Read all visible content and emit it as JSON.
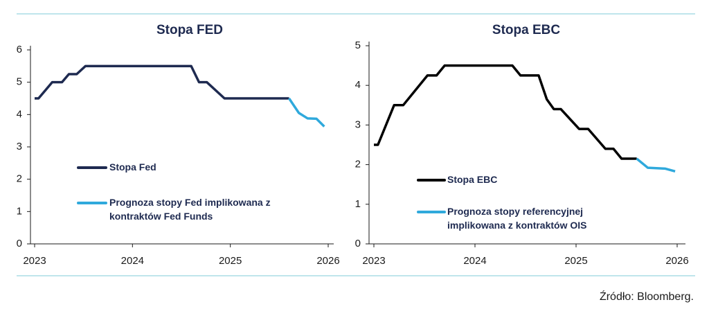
{
  "chart_data": [
    {
      "type": "line",
      "title": "Stopa FED",
      "x": [
        2023.0,
        2023.04,
        2023.18,
        2023.28,
        2023.35,
        2023.43,
        2023.52,
        2024.6,
        2024.68,
        2024.76,
        2024.94,
        2025.6,
        2025.7,
        2025.79,
        2025.88,
        2025.96
      ],
      "series": [
        {
          "name": "Stopa Fed",
          "color": "#1e2a50",
          "values": [
            4.5,
            4.5,
            5,
            5,
            5.25,
            5.25,
            5.5,
            5.5,
            5,
            5,
            4.5,
            4.5,
            null,
            null,
            null,
            null
          ]
        },
        {
          "name": "Prognoza stopy Fed implikowana z kontraktów Fed Funds",
          "color": "#2fa9dc",
          "values": [
            null,
            null,
            null,
            null,
            null,
            null,
            null,
            null,
            null,
            null,
            null,
            4.5,
            4.05,
            3.88,
            3.87,
            3.63
          ]
        }
      ],
      "xlim": [
        2023,
        2026
      ],
      "xticks": [
        2023,
        2024,
        2025,
        2026
      ],
      "ylim": [
        0,
        6
      ],
      "yticks": [
        0,
        1,
        2,
        3,
        4,
        5,
        6
      ]
    },
    {
      "type": "line",
      "title": "Stopa EBC",
      "x": [
        2023.0,
        2023.04,
        2023.2,
        2023.29,
        2023.53,
        2023.62,
        2023.7,
        2024.37,
        2024.45,
        2024.63,
        2024.71,
        2024.78,
        2024.85,
        2025.03,
        2025.12,
        2025.29,
        2025.37,
        2025.45,
        2025.6,
        2025.71,
        2025.88,
        2025.98
      ],
      "series": [
        {
          "name": "Stopa EBC",
          "color": "#000000",
          "values": [
            2.5,
            2.5,
            3.5,
            3.5,
            4.25,
            4.25,
            4.5,
            4.5,
            4.25,
            4.25,
            3.65,
            3.4,
            3.4,
            2.9,
            2.9,
            2.4,
            2.4,
            2.15,
            2.15,
            null,
            null,
            null
          ]
        },
        {
          "name": "Prognoza stopy referencyjnej implikowana z kontraktów OIS",
          "color": "#2fa9dc",
          "values": [
            null,
            null,
            null,
            null,
            null,
            null,
            null,
            null,
            null,
            null,
            null,
            null,
            null,
            null,
            null,
            null,
            null,
            null,
            2.15,
            1.92,
            1.9,
            1.83
          ]
        }
      ],
      "xlim": [
        2023,
        2026
      ],
      "xticks": [
        2023,
        2024,
        2025,
        2026
      ],
      "ylim": [
        0,
        5
      ],
      "yticks": [
        0,
        1,
        2,
        3,
        4,
        5
      ]
    }
  ],
  "source": "Źródło: Bloomberg."
}
